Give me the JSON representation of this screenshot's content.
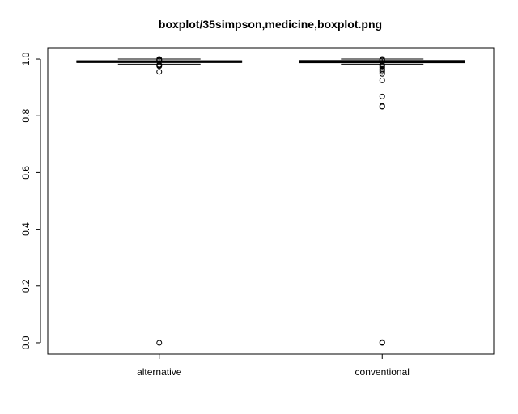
{
  "chart_data": {
    "type": "boxplot",
    "title": "boxplot/35simpson,medicine,boxplot.png",
    "xlabel": "",
    "ylabel": "",
    "ylim": [
      -0.04,
      1.04
    ],
    "yticks": [
      0.0,
      0.2,
      0.4,
      0.6,
      0.8,
      1.0
    ],
    "ytick_labels": [
      "0.0",
      "0.2",
      "0.4",
      "0.6",
      "0.8",
      "1.0"
    ],
    "categories": [
      "alternative",
      "conventional"
    ],
    "boxes": [
      {
        "name": "alternative",
        "min": 0.982,
        "q1": 0.988,
        "median": 0.991,
        "q3": 0.994,
        "max": 1.0,
        "outliers": [
          0.955,
          0.975,
          0.978,
          0.98,
          0.995,
          0.997,
          1.0,
          0.0
        ]
      },
      {
        "name": "conventional",
        "min": 0.982,
        "q1": 0.987,
        "median": 0.991,
        "q3": 0.995,
        "max": 1.0,
        "outliers": [
          0.925,
          0.948,
          0.955,
          0.96,
          0.965,
          0.97,
          0.975,
          0.978,
          0.98,
          0.995,
          0.998,
          1.0,
          0.868,
          0.835,
          0.832,
          0.002,
          0.0
        ]
      }
    ]
  }
}
